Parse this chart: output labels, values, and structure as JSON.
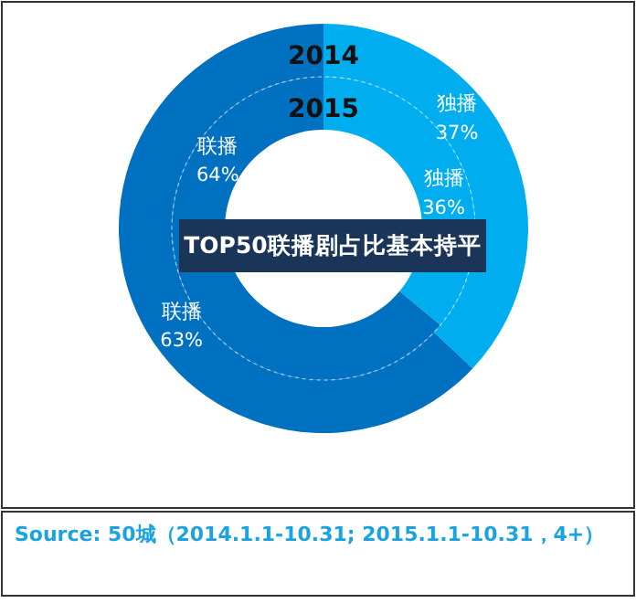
{
  "chart_data": {
    "type": "donut",
    "categories": [
      "独播",
      "联播"
    ],
    "series": [
      {
        "name": "2014",
        "values": [
          37,
          63
        ],
        "value_labels": [
          "37%",
          "63%"
        ],
        "colors": [
          "#00aeef",
          "#0070c0"
        ]
      },
      {
        "name": "2015",
        "values": [
          36,
          64
        ],
        "value_labels": [
          "36%",
          "64%"
        ],
        "colors": [
          "#00aeef",
          "#0070c0"
        ]
      }
    ],
    "data_labels": true,
    "annotations": [
      "TOP50联播剧占比基本持平",
      "Source: 50城（2014.1.1-10.31; 2015.1.1-10.31，4+）"
    ]
  }
}
